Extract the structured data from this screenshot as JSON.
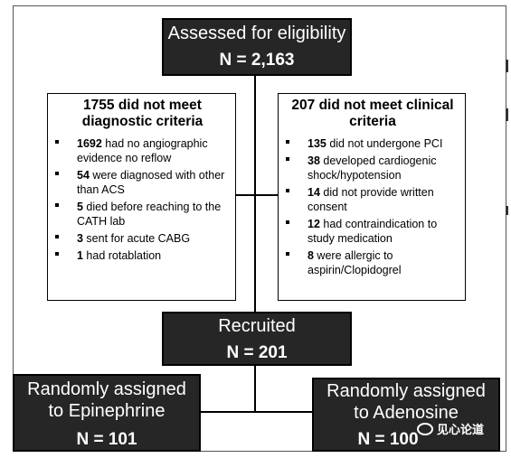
{
  "eligibility": {
    "title": "Assessed for eligibility",
    "count": "N = 2,163"
  },
  "excluded_diagnostic": {
    "heading": "1755 did not meet diagnostic criteria",
    "items": [
      {
        "num": "1692",
        "text": " had no angiographic evidence no reflow"
      },
      {
        "num": "54",
        "text": " were diagnosed with other than ACS"
      },
      {
        "num": "5",
        "text": " died before reaching to the CATH lab"
      },
      {
        "num": "3",
        "text": " sent for acute CABG"
      },
      {
        "num": "1",
        "text": " had rotablation"
      }
    ]
  },
  "excluded_clinical": {
    "heading": "207 did not meet clinical criteria",
    "items": [
      {
        "num": "135",
        "text": " did not undergone PCI"
      },
      {
        "num": "38",
        "text": " developed cardiogenic shock/hypotension"
      },
      {
        "num": "14",
        "text": " did not provide written consent"
      },
      {
        "num": "12",
        "text": " had contraindication to study medication"
      },
      {
        "num": "8",
        "text": " were allergic to aspirin/Clopidogrel"
      }
    ]
  },
  "recruited": {
    "title": "Recruited",
    "count": "N = 201"
  },
  "arm_epinephrine": {
    "title": "Randomly assigned to Epinephrine",
    "count": "N = 101"
  },
  "arm_adenosine": {
    "title": "Randomly assigned to Adenosine",
    "count": "N = 100"
  },
  "watermark": {
    "text": "见心论道",
    "icon": "wechat-icon"
  }
}
